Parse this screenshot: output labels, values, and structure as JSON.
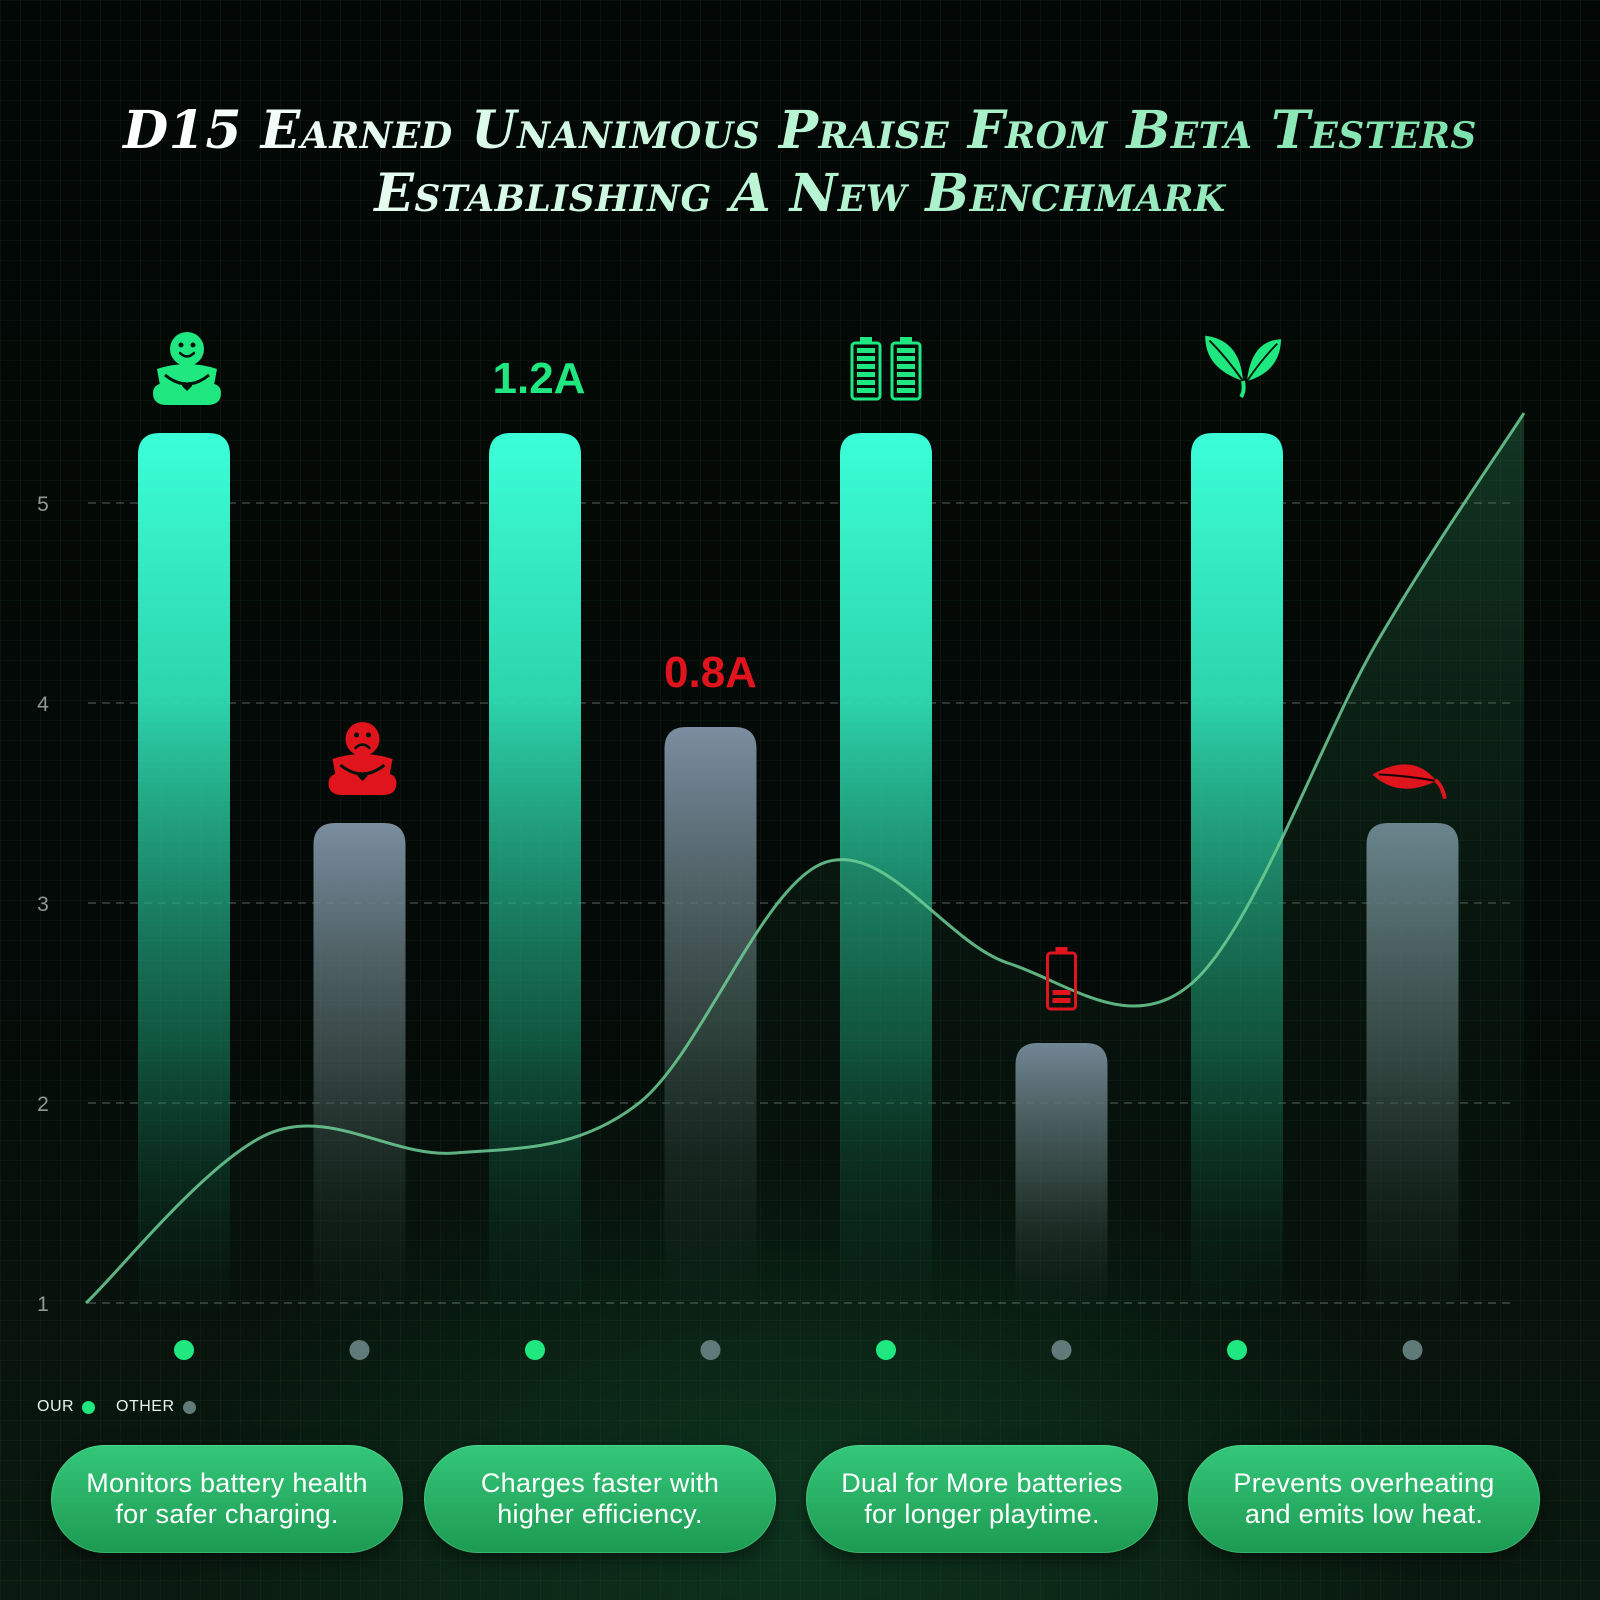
{
  "title_lines": [
    "D15 Earned Unanimous Praise From Beta Testers",
    "Establishing A New Benchmark"
  ],
  "colors": {
    "our": "#1ee87f",
    "other": "#5f7a78",
    "our_bar_top": "#3bffd8",
    "other_bar_top": "#7b8ea0",
    "curve": "#6fcf97",
    "negative": "#e0141c"
  },
  "chart_data": {
    "type": "bar",
    "title": "D15 Earned Unanimous Praise From Beta Testers Establishing A New Benchmark",
    "categories": [
      "",
      "",
      "",
      "",
      "",
      "",
      "",
      ""
    ],
    "groups": [
      "OUR",
      "OTHER",
      "OUR",
      "OTHER",
      "OUR",
      "OTHER",
      "OUR",
      "OTHER"
    ],
    "values": [
      5.35,
      3.4,
      5.35,
      3.88,
      5.35,
      2.3,
      5.35,
      3.4
    ],
    "bar_labels": [
      "",
      "",
      "1.2A",
      "0.8A",
      "",
      "",
      "",
      ""
    ],
    "bar_icons": [
      "happy-figure-icon",
      "sad-figure-icon",
      "",
      "",
      "double-full-battery-icon",
      "low-battery-icon",
      "green-leaves-icon",
      "wilted-leaf-icon"
    ],
    "yticks": [
      1,
      2,
      3,
      4,
      5
    ],
    "ylim": [
      1,
      5.35
    ],
    "grid": true,
    "legend": {
      "position": "bottom-left",
      "items": [
        {
          "label": "OUR",
          "color": "#1ee87f"
        },
        {
          "label": "OTHER",
          "color": "#5f7a78"
        }
      ]
    },
    "trend_curve": {
      "x": [
        0,
        1,
        2,
        3,
        4,
        5,
        6,
        7,
        7.8
      ],
      "y": [
        1.0,
        1.85,
        1.75,
        2.0,
        3.2,
        2.7,
        2.6,
        4.3,
        5.45
      ]
    }
  },
  "features": [
    {
      "line1": "Monitors battery health",
      "line2": "for safer charging."
    },
    {
      "line1": "Charges faster with",
      "line2": "higher efficiency."
    },
    {
      "line1": "Dual for More batteries",
      "line2": "for longer playtime."
    },
    {
      "line1": "Prevents overheating",
      "line2": "and emits low heat."
    }
  ]
}
